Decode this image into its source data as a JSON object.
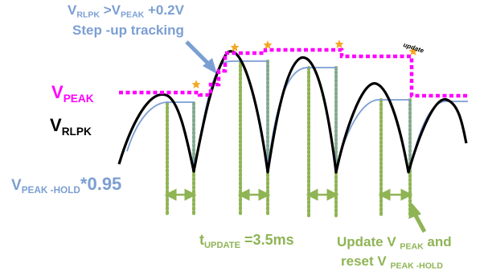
{
  "labels": {
    "threshold_line1": {
      "v": "V",
      "sub1": "RLPK",
      "mid": " >V",
      "sub2": "PEAK",
      "tail": " +0.2V"
    },
    "threshold_line2": "Step -up tracking",
    "vpeak": {
      "v": "V",
      "sub": "PEAK"
    },
    "vrlpk": {
      "v": "V",
      "sub": "RLPK"
    },
    "vpeak_hold": {
      "v": "V",
      "sub": "PEAK -HOLD",
      "tail": "*0.95"
    },
    "t_update": {
      "t": "t",
      "sub": "UPDATE",
      "tail": " =3.5ms"
    },
    "update_line1": {
      "pre": "Update V",
      "sub": "PEAK",
      "tail": " and"
    },
    "update_line2": {
      "pre": "reset V",
      "sub": "PEAK -HOLD"
    },
    "update_small": "update"
  },
  "colors": {
    "signal": "#000000",
    "peak": "#ff00ff",
    "hold": "#7b9fd3",
    "interval": "#8fb454",
    "star": "#f5a623"
  }
}
